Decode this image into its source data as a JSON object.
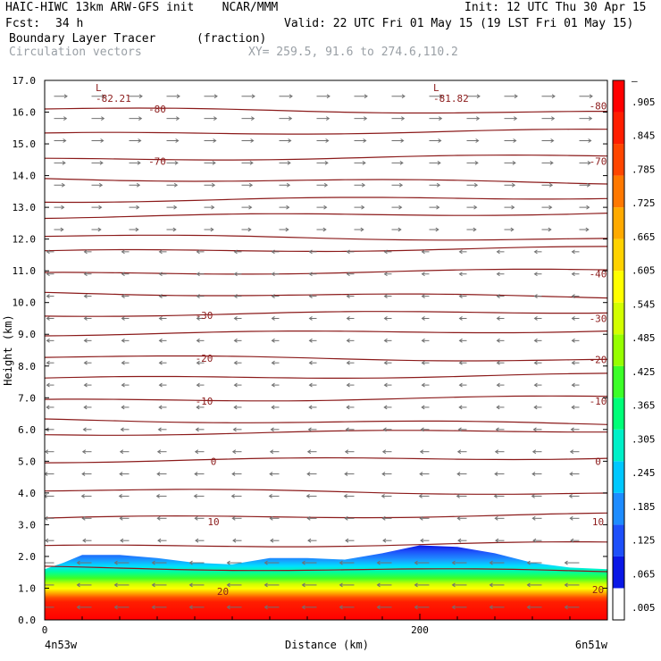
{
  "header": {
    "title": "HAIC-HIWC 13km ARW-GFS init    NCAR/MMM",
    "init": "Init: 12 UTC Thu 30 Apr 15",
    "fcst_label": "Fcst:",
    "fcst_value": "34 h",
    "valid": "Valid: 22 UTC Fri 01 May 15 (19 LST Fri 01 May 15)",
    "field1_name": "Boundary Layer Tracer",
    "field1_units": "(fraction)",
    "field2_name": "Circulation vectors",
    "xsec": "XY= 259.5, 91.6 to 274.6,110.2"
  },
  "chart_data": {
    "type": "heatmap",
    "xlabel": "Distance (km)",
    "ylabel": "Height (km)",
    "xlim": [
      0,
      300
    ],
    "ylim": [
      0,
      17
    ],
    "x_ticks": [
      0,
      200
    ],
    "x_tick_labels": [
      "0",
      "200"
    ],
    "x_endpoint_labels": [
      "4n53w",
      "6n51w"
    ],
    "y_ticks": [
      0,
      1,
      2,
      3,
      4,
      5,
      6,
      7,
      8,
      9,
      10,
      11,
      12,
      13,
      14,
      15,
      16,
      17
    ],
    "y_tick_labels": [
      "0.0",
      "1.0",
      "2.0",
      "3.0",
      "4.0",
      "5.0",
      "6.0",
      "7.0",
      "8.0",
      "9.0",
      "10.0",
      "11.0",
      "12.0",
      "13.0",
      "14.0",
      "15.0",
      "16.0",
      "17.0"
    ],
    "colorbar": {
      "labels": [
        ".005",
        ".065",
        ".125",
        ".185",
        ".245",
        ".305",
        ".365",
        ".425",
        ".485",
        ".545",
        ".605",
        ".665",
        ".725",
        ".785",
        ".845",
        ".905",
        "–"
      ],
      "colors": [
        "#ffffff",
        "#0a18e6",
        "#1e50fa",
        "#1e8cff",
        "#00c8ff",
        "#00f0c8",
        "#00ff78",
        "#3cff28",
        "#96ff00",
        "#d2ff00",
        "#ffff00",
        "#ffd200",
        "#ffaa00",
        "#ff7800",
        "#ff4600",
        "#ff1e00",
        "#ff0000"
      ]
    },
    "tracer_top_km": [
      [
        0,
        1.6
      ],
      [
        10,
        1.8
      ],
      [
        20,
        2.05
      ],
      [
        40,
        2.05
      ],
      [
        60,
        1.95
      ],
      [
        80,
        1.8
      ],
      [
        100,
        1.75
      ],
      [
        120,
        1.95
      ],
      [
        140,
        1.95
      ],
      [
        160,
        1.9
      ],
      [
        180,
        2.1
      ],
      [
        200,
        2.35
      ],
      [
        220,
        2.3
      ],
      [
        240,
        2.1
      ],
      [
        260,
        1.8
      ],
      [
        280,
        1.65
      ],
      [
        300,
        1.6
      ]
    ],
    "isotherm_heights_km": [
      16.1,
      15.3,
      14.5,
      13.9,
      13.2,
      12.7,
      12.1,
      11.6,
      10.9,
      10.3,
      9.6,
      9.0,
      8.3,
      7.6,
      6.9,
      6.3,
      5.85,
      5.0,
      4.1,
      3.2,
      2.3,
      1.65
    ],
    "isotherm_labels": [
      {
        "text": "-80",
        "x": 60,
        "y": 16.1
      },
      {
        "text": "-80",
        "x": 295,
        "y": 16.2
      },
      {
        "text": "-70",
        "x": 60,
        "y": 14.45
      },
      {
        "text": "-70",
        "x": 295,
        "y": 14.45
      },
      {
        "text": "-40",
        "x": 295,
        "y": 10.9
      },
      {
        "text": "-30",
        "x": 85,
        "y": 9.6
      },
      {
        "text": "-30",
        "x": 295,
        "y": 9.5
      },
      {
        "text": "-20",
        "x": 85,
        "y": 8.25
      },
      {
        "text": "-20",
        "x": 295,
        "y": 8.2
      },
      {
        "text": "-10",
        "x": 85,
        "y": 6.9
      },
      {
        "text": "-10",
        "x": 295,
        "y": 6.9
      },
      {
        "text": "0",
        "x": 90,
        "y": 5.0
      },
      {
        "text": "0",
        "x": 295,
        "y": 5.0
      },
      {
        "text": "10",
        "x": 90,
        "y": 3.1
      },
      {
        "text": "10",
        "x": 295,
        "y": 3.1
      },
      {
        "text": "20",
        "x": 95,
        "y": 0.9
      },
      {
        "text": "20",
        "x": 295,
        "y": 0.95
      }
    ],
    "minima": [
      {
        "label": "L",
        "value": "-82.21",
        "x": 30,
        "y": 16.6
      },
      {
        "label": "L",
        "value": "-81.82",
        "x": 210,
        "y": 16.6
      }
    ],
    "vectors": {
      "x_spacing_km": 20,
      "y_spacing_km": 0.7,
      "direction": "westerly aloft, easterly below 12 km"
    },
    "colors": {
      "isotherm": "#8b1a1a",
      "vector": "#707070",
      "label": "#8b1a1a"
    }
  }
}
